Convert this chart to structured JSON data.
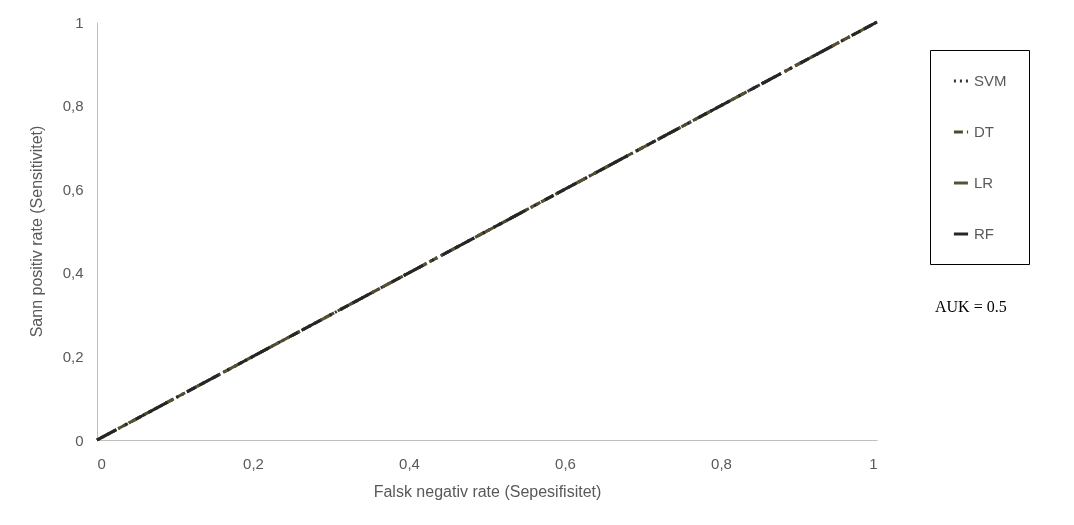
{
  "chart_data": {
    "type": "line",
    "xlabel": "Falsk negativ rate (Sepesifisitet)",
    "ylabel": "Sann positiv rate (Sensitivitet)",
    "x": [
      0,
      1
    ],
    "series": [
      {
        "name": "SVM",
        "color": "#333333",
        "values": [
          0,
          1
        ],
        "line_style": "dotted"
      },
      {
        "name": "DT",
        "color": "#4f4a2f",
        "values": [
          0,
          1
        ],
        "line_style": "dashed"
      },
      {
        "name": "LR",
        "color": "#575234",
        "values": [
          0,
          1
        ],
        "line_style": "dashed"
      },
      {
        "name": "RF",
        "color": "#262626",
        "values": [
          0,
          1
        ],
        "line_style": "dashed"
      }
    ],
    "xlim": [
      0,
      1
    ],
    "ylim": [
      0,
      1
    ],
    "xticks": [
      0,
      {
        "value": 0.2,
        "label": "0,2"
      },
      {
        "value": 0.4,
        "label": "0,4"
      },
      {
        "value": 0.6,
        "label": "0,6"
      },
      {
        "value": 0.8,
        "label": "0,8"
      },
      1
    ],
    "yticks": [
      0,
      {
        "value": 0.2,
        "label": "0,2"
      },
      {
        "value": 0.4,
        "label": "0,4"
      },
      {
        "value": 0.6,
        "label": "0,6"
      },
      {
        "value": 0.8,
        "label": "0,8"
      },
      1
    ],
    "grid": false,
    "legend": "right",
    "marker": "none",
    "annotations": [
      "AUK = 0.5"
    ]
  }
}
